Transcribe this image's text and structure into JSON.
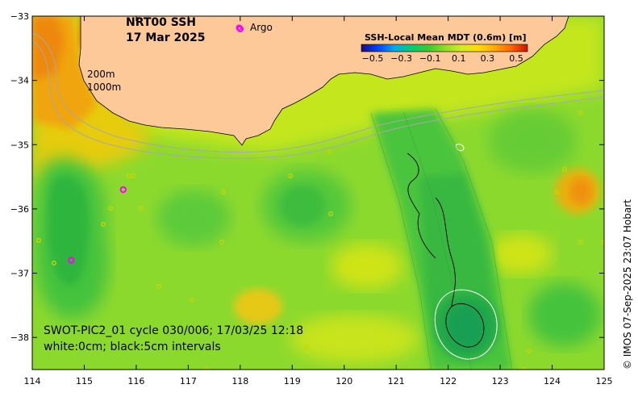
{
  "title": {
    "line1": "NRT00 SSH",
    "line2": "17 Mar 2025"
  },
  "legend": {
    "argo_marker": "o",
    "argo_label": "Argo",
    "colorbar_title": "SSH-Local Mean MDT (0.6m) [m]",
    "colorbar_ticks": [
      "−0.5",
      "−0.3",
      "−0.1",
      "0.1",
      "0.3",
      "0.5"
    ],
    "colorbar_colors": [
      "#1a0a8c",
      "#0044ff",
      "#00aaee",
      "#00cc77",
      "#33cc33",
      "#88dd22",
      "#ccee22",
      "#ffdd00",
      "#ffaa00",
      "#ff6600",
      "#cc1100"
    ],
    "isobath_200": "200m",
    "isobath_1000": "1000m"
  },
  "info": {
    "line1": "SWOT-PIC2_01 cycle 030/006; 17/03/25 12:18",
    "line2": "white:0cm; black:5cm intervals"
  },
  "credit": "© IMOS 07-Sep-2025 23:07 Hobart",
  "map_data": {
    "x_axis": {
      "label": "",
      "min": 114,
      "max": 125,
      "ticks": [
        "114",
        "115",
        "116",
        "117",
        "118",
        "119",
        "120",
        "121",
        "122",
        "123",
        "124",
        "125"
      ]
    },
    "y_axis": {
      "label": "",
      "min": -38.5,
      "max": -33,
      "ticks": [
        "−33",
        "−34",
        "−35",
        "−36",
        "−37",
        "−38"
      ]
    },
    "argo_floats": [
      {
        "lon": 118.0,
        "lat": -33.2
      },
      {
        "lon": 115.75,
        "lat": -35.7
      },
      {
        "lon": 114.75,
        "lat": -36.8
      }
    ],
    "colors": {
      "land": "#fdc999",
      "ocean_base": "#8cd92e",
      "argo": "#ff00ff",
      "isobath": "#a8a8a8"
    }
  }
}
